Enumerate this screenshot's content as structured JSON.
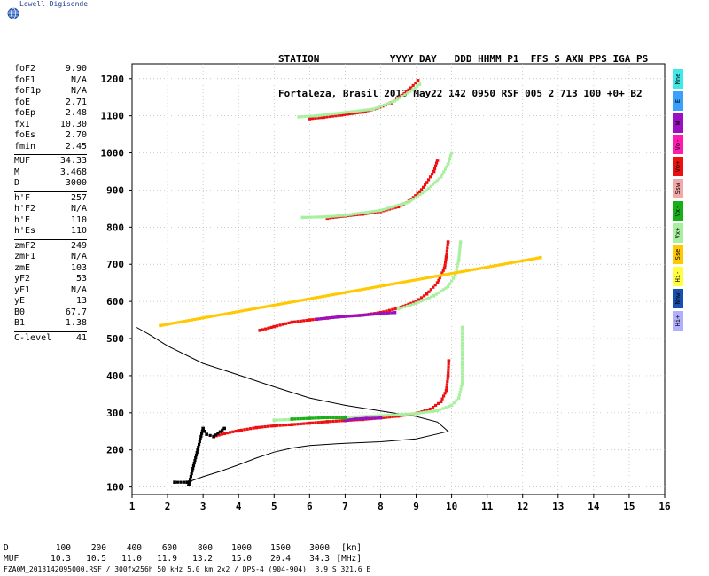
{
  "brand": {
    "name": "Lowell Digisonde",
    "logo_icon": "globe-icon"
  },
  "header": {
    "line1": "STATION            YYYY DAY   DDD HHMM P1  FFS S AXN PPS IGA PS",
    "line2": "Fortaleza, Brasil 2013 May22 142 0950 RSF 005 2 713 100 +0+ B2"
  },
  "params": [
    {
      "label": "foF2",
      "value": "9.90"
    },
    {
      "label": "foF1",
      "value": "N/A"
    },
    {
      "label": "foF1p",
      "value": "N/A"
    },
    {
      "label": "foE",
      "value": "2.71"
    },
    {
      "label": "foEp",
      "value": "2.48"
    },
    {
      "label": "fxI",
      "value": "10.30"
    },
    {
      "label": "foEs",
      "value": "2.70"
    },
    {
      "label": "fmin",
      "value": "2.45"
    },
    {
      "sep": true
    },
    {
      "label": "MUF",
      "value": "34.33"
    },
    {
      "label": "M",
      "value": "3.468"
    },
    {
      "label": "D",
      "value": "3000"
    },
    {
      "sep": true
    },
    {
      "label": "h'F",
      "value": "257"
    },
    {
      "label": "h'F2",
      "value": "N/A"
    },
    {
      "label": "h'E",
      "value": "110"
    },
    {
      "label": "h'Es",
      "value": "110"
    },
    {
      "sep": true
    },
    {
      "label": "zmF2",
      "value": "249"
    },
    {
      "label": "zmF1",
      "value": "N/A"
    },
    {
      "label": "zmE",
      "value": "103"
    },
    {
      "label": "yF2",
      "value": "53"
    },
    {
      "label": "yF1",
      "value": "N/A"
    },
    {
      "label": "yE",
      "value": "13"
    },
    {
      "label": "B0",
      "value": "67.7"
    },
    {
      "label": "B1",
      "value": "1.38"
    },
    {
      "sep": true
    },
    {
      "label": "C-level",
      "value": "41"
    }
  ],
  "legend": [
    {
      "label": "Nne",
      "color": "#40e8e8"
    },
    {
      "label": "E",
      "color": "#3aa0ff"
    },
    {
      "label": "W",
      "color": "#9b10c0"
    },
    {
      "label": "Vo-",
      "color": "#ff1ab0"
    },
    {
      "label": "Vo+",
      "color": "#ee1010"
    },
    {
      "label": "Ssw",
      "color": "#f2a8a8"
    },
    {
      "label": "Vx-",
      "color": "#18b018"
    },
    {
      "label": "Vx+",
      "color": "#a8f0a0"
    },
    {
      "label": "Sse",
      "color": "#ffc800"
    },
    {
      "label": "Hi-",
      "color": "#ffff40"
    },
    {
      "label": "Nnw",
      "color": "#1850b0"
    },
    {
      "label": "Hi+",
      "color": "#b0b0ff"
    }
  ],
  "muf_table": {
    "d_label": "D",
    "d_values": [
      "100",
      "200",
      "400",
      "600",
      "800",
      "1000",
      "1500",
      "3000",
      "[km]"
    ],
    "muf_label": "MUF",
    "muf_values": [
      "10.3",
      "10.5",
      "11.0",
      "11.9",
      "13.2",
      "15.0",
      "20.4",
      "34.3",
      "[MHz]"
    ]
  },
  "footer": "FZA0M_2013142095000.RSF / 300fx256h 50 kHz 5.0 km 2x2 / DPS-4 (904-904)  3.9 S 321.6 E",
  "chart_data": {
    "type": "scatter",
    "xlim": [
      1,
      16
    ],
    "ylim": [
      80,
      1240
    ],
    "x_ticks": [
      "1",
      "2",
      "3",
      "4",
      "5",
      "6",
      "7",
      "8",
      "9",
      "10",
      "11",
      "12",
      "13",
      "14",
      "15",
      "16"
    ],
    "y_ticks": [
      "100",
      "200",
      "300",
      "400",
      "500",
      "600",
      "700",
      "800",
      "900",
      "1000",
      "1100",
      "1200"
    ],
    "grid": true,
    "profile_curve": [
      [
        2.55,
        104
      ],
      [
        2.7,
        118
      ],
      [
        3.0,
        128
      ],
      [
        3.5,
        143
      ],
      [
        4.0,
        160
      ],
      [
        4.5,
        178
      ],
      [
        5.0,
        194
      ],
      [
        5.5,
        205
      ],
      [
        6.0,
        212
      ],
      [
        7.0,
        218
      ],
      [
        8.0,
        222
      ],
      [
        9.0,
        230
      ],
      [
        9.6,
        243
      ],
      [
        9.9,
        250
      ],
      [
        9.6,
        275
      ],
      [
        9.0,
        290
      ],
      [
        8.0,
        305
      ],
      [
        7.0,
        320
      ],
      [
        6.0,
        340
      ],
      [
        5.0,
        370
      ],
      [
        4.0,
        402
      ],
      [
        3.0,
        433
      ],
      [
        2.0,
        480
      ],
      [
        1.5,
        510
      ],
      [
        1.13,
        530
      ]
    ],
    "traces": [
      {
        "name": "F2 O-mode 1st hop",
        "color": "#ee1010",
        "points": [
          [
            3.3,
            236
          ],
          [
            3.6,
            244
          ],
          [
            4.0,
            252
          ],
          [
            4.5,
            260
          ],
          [
            5.0,
            265
          ],
          [
            5.5,
            268
          ],
          [
            6.0,
            272
          ],
          [
            6.5,
            276
          ],
          [
            7.0,
            279
          ],
          [
            7.5,
            282
          ],
          [
            8.0,
            286
          ],
          [
            8.5,
            291
          ],
          [
            9.0,
            298
          ],
          [
            9.4,
            310
          ],
          [
            9.7,
            330
          ],
          [
            9.85,
            360
          ],
          [
            9.9,
            400
          ],
          [
            9.92,
            440
          ]
        ]
      },
      {
        "name": "F2 X-mode 1st hop",
        "color": "#a8f0a0",
        "points": [
          [
            5.0,
            280
          ],
          [
            5.5,
            282
          ],
          [
            6.0,
            285
          ],
          [
            7.0,
            288
          ],
          [
            8.0,
            292
          ],
          [
            9.0,
            298
          ],
          [
            9.6,
            306
          ],
          [
            10.0,
            320
          ],
          [
            10.2,
            340
          ],
          [
            10.3,
            380
          ],
          [
            10.3,
            430
          ],
          [
            10.3,
            480
          ],
          [
            10.3,
            530
          ]
        ]
      },
      {
        "name": "F2 W 1st hop",
        "color": "#9b10c0",
        "points": [
          [
            7.0,
            280
          ],
          [
            7.3,
            283
          ],
          [
            7.6,
            285
          ],
          [
            8.0,
            286
          ]
        ]
      },
      {
        "name": "F2 Vx- 1st hop",
        "color": "#18b018",
        "points": [
          [
            5.5,
            283
          ],
          [
            6.0,
            285
          ],
          [
            6.5,
            287
          ],
          [
            7.0,
            286
          ]
        ]
      },
      {
        "name": "Es echoes",
        "color": "#000000",
        "points": [
          [
            2.2,
            113
          ],
          [
            2.55,
            113
          ],
          [
            2.6,
            107
          ],
          [
            3.0,
            258
          ],
          [
            3.05,
            250
          ],
          [
            3.1,
            242
          ],
          [
            3.3,
            236
          ],
          [
            3.6,
            258
          ]
        ]
      },
      {
        "name": "F2 O-mode 2nd hop",
        "color": "#ee1010",
        "points": [
          [
            4.6,
            522
          ],
          [
            5.0,
            532
          ],
          [
            5.5,
            544
          ],
          [
            6.0,
            550
          ],
          [
            6.5,
            555
          ],
          [
            7.0,
            560
          ],
          [
            7.5,
            563
          ],
          [
            8.0,
            570
          ],
          [
            8.5,
            582
          ],
          [
            9.0,
            600
          ],
          [
            9.3,
            620
          ],
          [
            9.6,
            650
          ],
          [
            9.8,
            690
          ],
          [
            9.85,
            720
          ],
          [
            9.9,
            760
          ]
        ]
      },
      {
        "name": "F2 X-mode 2nd hop",
        "color": "#a8f0a0",
        "points": [
          [
            8.5,
            580
          ],
          [
            9.0,
            595
          ],
          [
            9.5,
            615
          ],
          [
            9.9,
            640
          ],
          [
            10.1,
            670
          ],
          [
            10.2,
            710
          ],
          [
            10.25,
            760
          ]
        ]
      },
      {
        "name": "F2 W 2nd hop",
        "color": "#9b10c0",
        "points": [
          [
            6.2,
            552
          ],
          [
            6.8,
            558
          ],
          [
            7.4,
            562
          ],
          [
            8.0,
            567
          ],
          [
            8.4,
            570
          ]
        ]
      },
      {
        "name": "F2 O-mode 3rd hop",
        "color": "#ee1010",
        "points": [
          [
            6.5,
            824
          ],
          [
            7.0,
            830
          ],
          [
            7.5,
            835
          ],
          [
            8.0,
            842
          ],
          [
            8.5,
            855
          ],
          [
            8.8,
            870
          ],
          [
            9.1,
            895
          ],
          [
            9.3,
            920
          ],
          [
            9.5,
            950
          ],
          [
            9.6,
            980
          ]
        ]
      },
      {
        "name": "F2 X-mode 3rd hop",
        "color": "#a8f0a0",
        "points": [
          [
            5.8,
            826
          ],
          [
            6.5,
            828
          ],
          [
            7.0,
            832
          ],
          [
            8.0,
            845
          ],
          [
            8.8,
            868
          ],
          [
            9.3,
            900
          ],
          [
            9.7,
            935
          ],
          [
            9.9,
            970
          ],
          [
            10.0,
            1000
          ]
        ]
      },
      {
        "name": "F2 O-mode 4th hop",
        "color": "#ee1010",
        "points": [
          [
            6.0,
            1092
          ],
          [
            6.4,
            1096
          ],
          [
            6.9,
            1102
          ],
          [
            7.5,
            1110
          ],
          [
            7.9,
            1120
          ],
          [
            8.3,
            1135
          ],
          [
            8.6,
            1155
          ],
          [
            8.85,
            1175
          ],
          [
            9.05,
            1195
          ]
        ]
      },
      {
        "name": "F2 X-mode 4th hop",
        "color": "#a8f0a0",
        "points": [
          [
            5.7,
            1097
          ],
          [
            6.2,
            1100
          ],
          [
            7.8,
            1118
          ],
          [
            8.4,
            1140
          ],
          [
            8.9,
            1170
          ],
          [
            9.1,
            1185
          ]
        ]
      },
      {
        "name": "noise",
        "color": "#ffc800",
        "points": [
          [
            1.8,
            535
          ],
          [
            12.5,
            718
          ]
        ]
      }
    ]
  }
}
